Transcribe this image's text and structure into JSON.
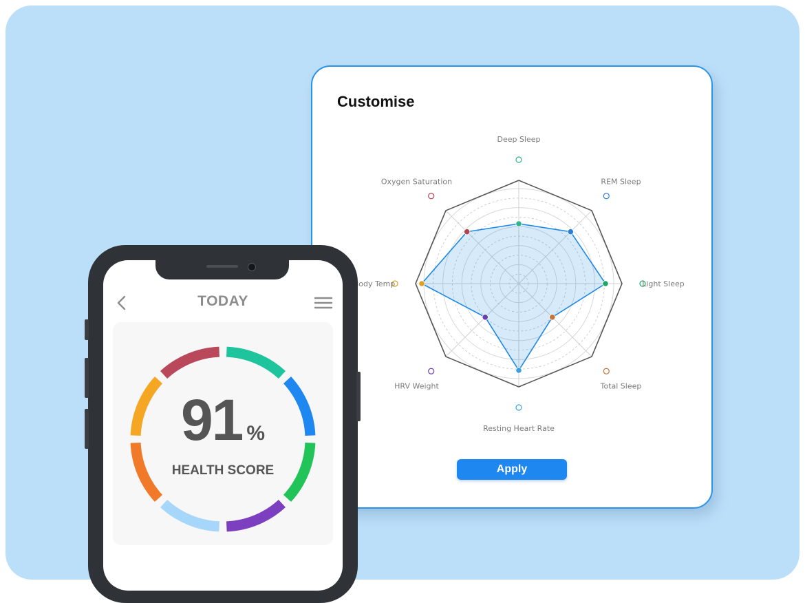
{
  "customise_card": {
    "title": "Customise",
    "apply_label": "Apply",
    "radar": {
      "axes": [
        "Deep Sleep",
        "REM Sleep",
        "Light Sleep",
        "Total Sleep",
        "Resting Heart Rate",
        "HRV Weight",
        "Body Temp",
        "Oxygen Saturation"
      ],
      "values": [
        0.58,
        0.71,
        0.84,
        0.46,
        0.84,
        0.46,
        0.94,
        0.71
      ],
      "marker_colors": [
        "#2fb38a",
        "#2d7fd6",
        "#1aa863",
        "#c4743a",
        "#3a9fe0",
        "#6a3fb0",
        "#e0a020",
        "#b2434d"
      ],
      "series_color": "#1e88e5"
    }
  },
  "phone": {
    "header_title": "TODAY",
    "back_icon": "chevron-left-icon",
    "menu_icon": "hamburger-menu-icon",
    "score_value": "91",
    "score_unit": "%",
    "score_label": "HEALTH SCORE",
    "ring_segment_colors": [
      "#1ec49b",
      "#1e88f0",
      "#22c45a",
      "#7b3fbf",
      "#a6d6fa",
      "#f07a2a",
      "#f5a623",
      "#b8485a"
    ]
  },
  "colors": {
    "background": "#bcdff9",
    "accent": "#1e88f0"
  }
}
